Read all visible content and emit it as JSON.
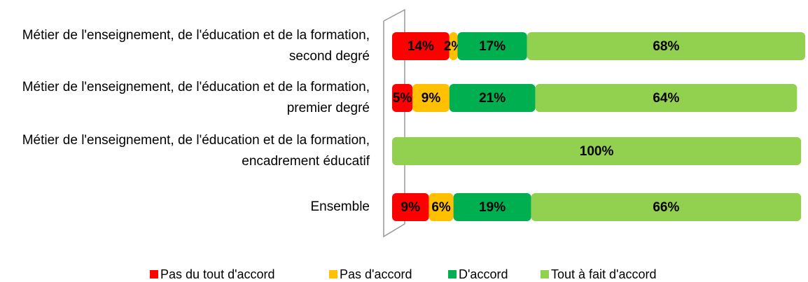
{
  "chart_data": {
    "type": "stacked-bar-horizontal",
    "categories": [
      "Métier de l'enseignement, de l'éducation et de la formation, second degré",
      "Métier de l'enseignement, de l'éducation et de la formation, premier degré",
      "Métier de l'enseignement, de l'éducation et de la formation, encadrement éducatif",
      "Ensemble"
    ],
    "series": [
      {
        "name": "Pas du tout d'accord",
        "color": "#ff0000",
        "values": [
          14,
          5,
          0,
          9
        ],
        "value_labels": [
          "14%",
          "5%",
          null,
          "9%"
        ]
      },
      {
        "name": "Pas d'accord",
        "color": "#ffc000",
        "values": [
          2,
          9,
          0,
          6
        ],
        "value_labels": [
          "2%",
          "9%",
          null,
          "6%"
        ]
      },
      {
        "name": "D'accord",
        "color": "#00b050",
        "values": [
          17,
          21,
          0,
          19
        ],
        "value_labels": [
          "17%",
          "21%",
          null,
          "19%"
        ]
      },
      {
        "name": "Tout à fait d'accord",
        "color": "#92d050",
        "values": [
          68,
          64,
          100,
          66
        ],
        "value_labels": [
          "68%",
          "64%",
          "100%",
          "66%"
        ]
      }
    ],
    "legend": "bottom"
  }
}
